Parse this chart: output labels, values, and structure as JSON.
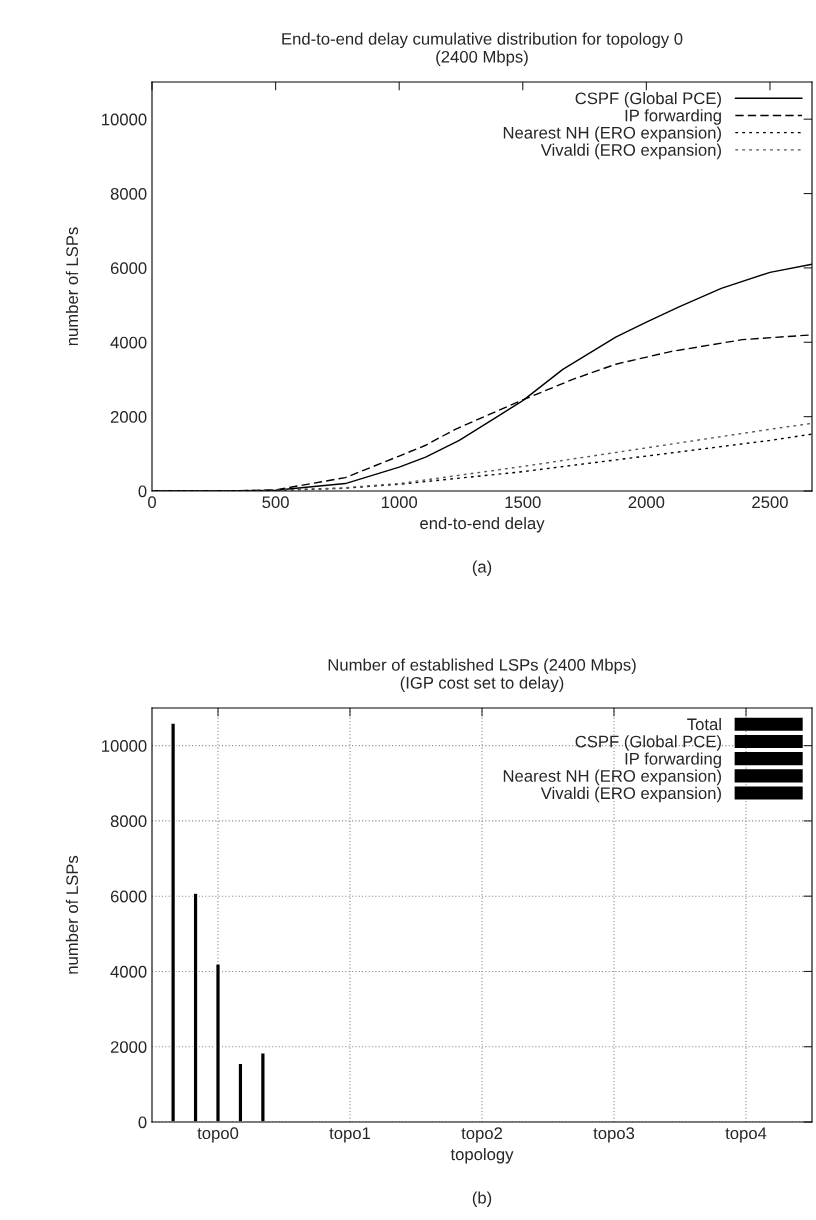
{
  "chart_data": [
    {
      "type": "line",
      "title": "End-to-end delay cumulative distribution for topology 0\n(2400 Mbps)",
      "xlabel": "end-to-end delay",
      "ylabel": "number of LSPs",
      "annotations": [
        "(a)"
      ],
      "xlim": [
        0,
        2670
      ],
      "xticks": [
        0,
        500,
        1000,
        1500,
        2000,
        2500
      ],
      "ylim": [
        0,
        11000
      ],
      "yticks": [
        0,
        2000,
        4000,
        6000,
        8000,
        10000
      ],
      "grid": false,
      "legend": "top right",
      "series": [
        {
          "name": "CSPF (Global PCE)",
          "color": "#000000",
          "line_style": "solid",
          "x": [
            0,
            300,
            500,
            782,
            1000,
            1107,
            1243,
            1397,
            1500,
            1662,
            1876,
            2000,
            2132,
            2303,
            2500,
            2670
          ],
          "values": [
            0,
            0,
            20,
            200,
            640,
            910,
            1360,
            2000,
            2430,
            3270,
            4140,
            4540,
            4950,
            5450,
            5880,
            6100
          ]
        },
        {
          "name": "IP forwarding",
          "color": "#000000",
          "line_style": "dashed",
          "x": [
            0,
            300,
            500,
            782,
            1000,
            1107,
            1227,
            1500,
            1705,
            1876,
            2098,
            2388,
            2670
          ],
          "values": [
            0,
            0,
            30,
            360,
            940,
            1230,
            1660,
            2450,
            3010,
            3410,
            3750,
            4070,
            4200
          ]
        },
        {
          "name": "Nearest NH (ERO expansion)",
          "color": "#000000",
          "line_style": "dotted",
          "x": [
            0,
            400,
            765,
            1000,
            1500,
            2000,
            2500,
            2670
          ],
          "values": [
            0,
            0,
            70,
            180,
            520,
            940,
            1360,
            1530
          ]
        },
        {
          "name": "Vivaldi (ERO expansion)",
          "color": "#555555",
          "line_style": "dotted",
          "x": [
            0,
            400,
            765,
            1000,
            1500,
            2000,
            2500,
            2670
          ],
          "values": [
            0,
            0,
            80,
            200,
            660,
            1160,
            1660,
            1820
          ]
        }
      ]
    },
    {
      "type": "bar",
      "title": "Number of established LSPs (2400 Mbps)\n(IGP cost set to delay)",
      "xlabel": "topology",
      "ylabel": "number of LSPs",
      "annotations": [
        "(b)"
      ],
      "categories": [
        "topo0",
        "topo1",
        "topo2",
        "topo3",
        "topo4"
      ],
      "ylim": [
        0,
        11000
      ],
      "yticks": [
        0,
        2000,
        4000,
        6000,
        8000,
        10000
      ],
      "grid": true,
      "legend": "top right",
      "series": [
        {
          "name": "Total",
          "color": "#000000",
          "values": [
            10600,
            null,
            null,
            null,
            null
          ]
        },
        {
          "name": "CSPF (Global PCE)",
          "color": "#000000",
          "values": [
            6080,
            null,
            null,
            null,
            null
          ]
        },
        {
          "name": "IP forwarding",
          "color": "#000000",
          "values": [
            4200,
            null,
            null,
            null,
            null
          ]
        },
        {
          "name": "Nearest NH (ERO expansion)",
          "color": "#000000",
          "values": [
            1560,
            null,
            null,
            null,
            null
          ]
        },
        {
          "name": "Vivaldi (ERO expansion)",
          "color": "#000000",
          "values": [
            1840,
            null,
            null,
            null,
            null
          ]
        }
      ]
    }
  ]
}
